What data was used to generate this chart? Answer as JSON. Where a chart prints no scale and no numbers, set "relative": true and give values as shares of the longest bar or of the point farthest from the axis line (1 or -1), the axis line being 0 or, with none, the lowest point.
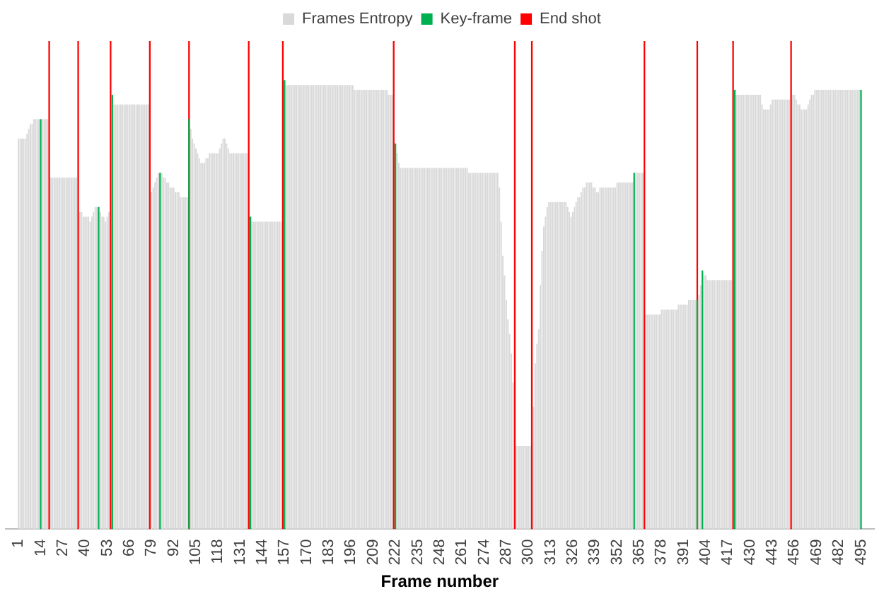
{
  "chart_data": {
    "type": "bar",
    "relative": true,
    "xlabel": "Frame number",
    "legend": "top",
    "grid": false,
    "xlim": [
      0,
      496
    ],
    "xticks": [
      1,
      14,
      27,
      40,
      53,
      66,
      79,
      92,
      105,
      118,
      131,
      144,
      157,
      170,
      183,
      196,
      209,
      222,
      235,
      248,
      261,
      274,
      287,
      300,
      313,
      326,
      339,
      352,
      365,
      378,
      391,
      404,
      417,
      430,
      443,
      456,
      469,
      482,
      495
    ],
    "x": [
      1,
      2,
      3,
      4,
      5,
      6,
      7,
      8,
      9,
      10,
      11,
      12,
      13,
      14,
      15,
      16,
      17,
      18,
      19,
      20,
      21,
      22,
      23,
      24,
      25,
      26,
      27,
      28,
      29,
      30,
      31,
      32,
      33,
      34,
      35,
      36,
      37,
      38,
      39,
      40,
      41,
      42,
      43,
      44,
      45,
      46,
      47,
      48,
      49,
      50,
      51,
      52,
      53,
      54,
      55,
      56,
      57,
      58,
      59,
      60,
      61,
      62,
      63,
      64,
      65,
      66,
      67,
      68,
      69,
      70,
      71,
      72,
      73,
      74,
      75,
      76,
      77,
      78,
      79,
      80,
      81,
      82,
      83,
      84,
      85,
      86,
      87,
      88,
      89,
      90,
      91,
      92,
      93,
      94,
      95,
      96,
      97,
      98,
      99,
      100,
      101,
      102,
      103,
      104,
      105,
      106,
      107,
      108,
      109,
      110,
      111,
      112,
      113,
      114,
      115,
      116,
      117,
      118,
      119,
      120,
      121,
      122,
      123,
      124,
      125,
      126,
      127,
      128,
      129,
      130,
      131,
      132,
      133,
      134,
      135,
      136,
      137,
      138,
      139,
      140,
      141,
      142,
      143,
      144,
      145,
      146,
      147,
      148,
      149,
      150,
      151,
      152,
      153,
      154,
      155,
      156,
      157,
      158,
      159,
      160,
      161,
      162,
      163,
      164,
      165,
      166,
      167,
      168,
      169,
      170,
      171,
      172,
      173,
      174,
      175,
      176,
      177,
      178,
      179,
      180,
      181,
      182,
      183,
      184,
      185,
      186,
      187,
      188,
      189,
      190,
      191,
      192,
      193,
      194,
      195,
      196,
      197,
      198,
      199,
      200,
      201,
      202,
      203,
      204,
      205,
      206,
      207,
      208,
      209,
      210,
      211,
      212,
      213,
      214,
      215,
      216,
      217,
      218,
      219,
      220,
      221,
      222,
      223,
      224,
      225,
      226,
      227,
      228,
      229,
      230,
      231,
      232,
      233,
      234,
      235,
      236,
      237,
      238,
      239,
      240,
      241,
      242,
      243,
      244,
      245,
      246,
      247,
      248,
      249,
      250,
      251,
      252,
      253,
      254,
      255,
      256,
      257,
      258,
      259,
      260,
      261,
      262,
      263,
      264,
      265,
      266,
      267,
      268,
      269,
      270,
      271,
      272,
      273,
      274,
      275,
      276,
      277,
      278,
      279,
      280,
      281,
      282,
      283,
      284,
      285,
      286,
      287,
      288,
      289,
      290,
      291,
      292,
      293,
      294,
      295,
      296,
      297,
      298,
      299,
      300,
      301,
      302,
      303,
      304,
      305,
      306,
      307,
      308,
      309,
      310,
      311,
      312,
      313,
      314,
      315,
      316,
      317,
      318,
      319,
      320,
      321,
      322,
      323,
      324,
      325,
      326,
      327,
      328,
      329,
      330,
      331,
      332,
      333,
      334,
      335,
      336,
      337,
      338,
      339,
      340,
      341,
      342,
      343,
      344,
      345,
      346,
      347,
      348,
      349,
      350,
      351,
      352,
      353,
      354,
      355,
      356,
      357,
      358,
      359,
      360,
      361,
      362,
      363,
      364,
      365,
      366,
      367,
      368,
      369,
      370,
      371,
      372,
      373,
      374,
      375,
      376,
      377,
      378,
      379,
      380,
      381,
      382,
      383,
      384,
      385,
      386,
      387,
      388,
      389,
      390,
      391,
      392,
      393,
      394,
      395,
      396,
      397,
      398,
      399,
      400,
      401,
      402,
      403,
      404,
      405,
      406,
      407,
      408,
      409,
      410,
      411,
      412,
      413,
      414,
      415,
      416,
      417,
      418,
      419,
      420,
      421,
      422,
      423,
      424,
      425,
      426,
      427,
      428,
      429,
      430,
      431,
      432,
      433,
      434,
      435,
      436,
      437,
      438,
      439,
      440,
      441,
      442,
      443,
      444,
      445,
      446,
      447,
      448,
      449,
      450,
      451,
      452,
      453,
      454,
      455,
      456,
      457,
      458,
      459,
      460,
      461,
      462,
      463,
      464,
      465,
      466,
      467,
      468,
      469,
      470,
      471,
      472,
      473,
      474,
      475,
      476,
      477,
      478,
      479,
      480,
      481,
      482,
      483,
      484,
      485,
      486,
      487,
      488,
      489,
      490,
      491,
      492,
      493,
      494
    ],
    "series": [
      {
        "name": "Frames Entropy",
        "color": "#d9d9d9",
        "values": [
          0.8,
          0.8,
          0.8,
          0.8,
          0.8,
          0.81,
          0.82,
          0.83,
          0.83,
          0.84,
          0.84,
          0.84,
          0.84,
          null,
          0.84,
          0.84,
          0.84,
          0.84,
          null,
          0.72,
          0.72,
          0.72,
          0.72,
          0.72,
          0.72,
          0.72,
          0.72,
          0.72,
          0.72,
          0.72,
          0.72,
          0.72,
          0.72,
          0.72,
          0.72,
          null,
          0.65,
          0.65,
          0.64,
          0.64,
          0.64,
          0.64,
          0.63,
          0.64,
          0.65,
          0.66,
          0.66,
          null,
          0.65,
          0.64,
          0.64,
          0.63,
          0.64,
          0.65,
          null,
          null,
          0.87,
          0.87,
          0.87,
          0.87,
          0.87,
          0.87,
          0.87,
          0.87,
          0.87,
          0.87,
          0.87,
          0.87,
          0.87,
          0.87,
          0.87,
          0.87,
          0.87,
          0.87,
          0.87,
          0.87,
          0.87,
          null,
          0.69,
          0.7,
          0.71,
          0.72,
          0.73,
          null,
          0.73,
          0.72,
          0.72,
          0.71,
          0.71,
          0.7,
          0.7,
          0.7,
          0.69,
          0.69,
          0.69,
          0.68,
          0.68,
          0.68,
          0.68,
          0.68,
          null,
          0.82,
          0.8,
          0.79,
          0.78,
          0.77,
          0.76,
          0.75,
          0.75,
          0.75,
          0.76,
          0.76,
          0.77,
          0.77,
          0.77,
          0.77,
          0.77,
          0.77,
          0.78,
          0.79,
          0.8,
          0.8,
          0.79,
          0.78,
          0.77,
          0.77,
          0.77,
          0.77,
          0.77,
          0.77,
          0.77,
          0.77,
          0.77,
          0.77,
          0.77,
          null,
          null,
          0.63,
          0.63,
          0.63,
          0.63,
          0.63,
          0.63,
          0.63,
          0.63,
          0.63,
          0.63,
          0.63,
          0.63,
          0.63,
          0.63,
          0.63,
          0.63,
          0.63,
          0.63,
          null,
          null,
          0.91,
          0.91,
          0.91,
          0.91,
          0.91,
          0.91,
          0.91,
          0.91,
          0.91,
          0.91,
          0.91,
          0.91,
          0.91,
          0.91,
          0.91,
          0.91,
          0.91,
          0.91,
          0.91,
          0.91,
          0.91,
          0.91,
          0.91,
          0.91,
          0.91,
          0.91,
          0.91,
          0.91,
          0.91,
          0.91,
          0.91,
          0.91,
          0.91,
          0.91,
          0.91,
          0.91,
          0.91,
          0.91,
          0.91,
          0.91,
          0.9,
          0.9,
          0.9,
          0.9,
          0.9,
          0.9,
          0.9,
          0.9,
          0.9,
          0.9,
          0.9,
          0.9,
          0.9,
          0.9,
          0.9,
          0.9,
          0.9,
          0.9,
          0.9,
          0.9,
          0.89,
          0.89,
          0.89,
          null,
          null,
          0.77,
          0.75,
          0.74,
          0.74,
          0.74,
          0.74,
          0.74,
          0.74,
          0.74,
          0.74,
          0.74,
          0.74,
          0.74,
          0.74,
          0.74,
          0.74,
          0.74,
          0.74,
          0.74,
          0.74,
          0.74,
          0.74,
          0.74,
          0.74,
          0.74,
          0.74,
          0.74,
          0.74,
          0.74,
          0.74,
          0.74,
          0.74,
          0.74,
          0.74,
          0.74,
          0.74,
          0.74,
          0.74,
          0.74,
          0.74,
          0.74,
          0.74,
          0.73,
          0.73,
          0.73,
          0.73,
          0.73,
          0.73,
          0.73,
          0.73,
          0.73,
          0.73,
          0.73,
          0.73,
          0.73,
          0.73,
          0.73,
          0.73,
          0.73,
          0.73,
          0.7,
          0.63,
          0.56,
          0.52,
          0.47,
          0.43,
          0.4,
          0.36,
          0.3,
          null,
          0.17,
          0.17,
          0.17,
          0.17,
          0.17,
          0.17,
          0.17,
          0.17,
          0.17,
          null,
          0.25,
          0.34,
          0.38,
          0.41,
          0.5,
          0.57,
          0.62,
          0.64,
          0.66,
          0.67,
          0.67,
          0.67,
          0.67,
          0.67,
          0.67,
          0.67,
          0.67,
          0.67,
          0.67,
          0.67,
          0.66,
          0.65,
          0.64,
          0.65,
          0.66,
          0.67,
          0.68,
          0.68,
          0.69,
          0.7,
          0.7,
          0.71,
          0.71,
          0.71,
          0.71,
          0.7,
          0.7,
          0.69,
          0.69,
          0.7,
          0.7,
          0.7,
          0.7,
          0.7,
          0.7,
          0.7,
          0.7,
          0.7,
          0.7,
          0.71,
          0.71,
          0.71,
          0.71,
          0.71,
          0.71,
          0.71,
          0.71,
          0.71,
          0.71,
          null,
          0.73,
          0.73,
          0.73,
          0.73,
          0.73,
          null,
          0.44,
          0.44,
          0.44,
          0.44,
          0.44,
          0.44,
          0.44,
          0.44,
          0.44,
          0.45,
          0.45,
          0.45,
          0.45,
          0.45,
          0.45,
          0.45,
          0.45,
          0.45,
          0.45,
          0.46,
          0.46,
          0.46,
          0.46,
          0.46,
          0.46,
          0.47,
          0.47,
          0.47,
          0.47,
          0.47,
          null,
          0.48,
          0.5,
          null,
          0.52,
          0.52,
          0.51,
          0.51,
          0.51,
          0.51,
          0.51,
          0.51,
          0.51,
          0.51,
          0.51,
          0.51,
          0.51,
          0.51,
          0.51,
          0.51,
          0.51,
          null,
          null,
          0.89,
          0.89,
          0.89,
          0.89,
          0.89,
          0.89,
          0.89,
          0.89,
          0.89,
          0.89,
          0.89,
          0.89,
          0.89,
          0.89,
          0.89,
          0.87,
          0.86,
          0.86,
          0.86,
          0.86,
          0.87,
          0.88,
          0.88,
          0.88,
          0.88,
          0.88,
          0.88,
          0.88,
          0.88,
          0.88,
          0.88,
          0.88,
          null,
          0.89,
          0.89,
          0.88,
          0.87,
          0.87,
          0.86,
          0.86,
          0.86,
          0.86,
          0.87,
          0.88,
          0.89,
          0.89,
          0.9,
          0.9,
          0.9,
          0.9,
          0.9,
          0.9,
          0.9,
          0.9,
          0.9,
          0.9,
          0.9,
          0.9,
          0.9,
          0.9,
          0.9,
          0.9,
          0.9,
          0.9,
          0.9,
          0.9,
          0.9,
          0.9,
          0.9,
          0.9,
          0.9,
          0.9,
          0.9
        ]
      },
      {
        "name": "Key-frame",
        "color": "#00b050",
        "x": [
          14,
          48,
          56,
          84,
          101,
          137,
          157,
          222,
          362,
          399,
          402,
          421,
          495
        ],
        "values": [
          0.84,
          0.66,
          0.89,
          0.73,
          0.84,
          0.64,
          0.92,
          0.79,
          0.73,
          0.47,
          0.53,
          0.9,
          0.9
        ]
      },
      {
        "name": "End shot",
        "color": "#ff0000",
        "x": [
          19,
          36,
          55,
          78,
          101,
          136,
          156,
          221,
          292,
          302,
          368,
          399,
          420,
          454
        ],
        "values": [
          1,
          1,
          1,
          1,
          1,
          1,
          1,
          1,
          1,
          1,
          1,
          1,
          1,
          1
        ]
      }
    ]
  }
}
